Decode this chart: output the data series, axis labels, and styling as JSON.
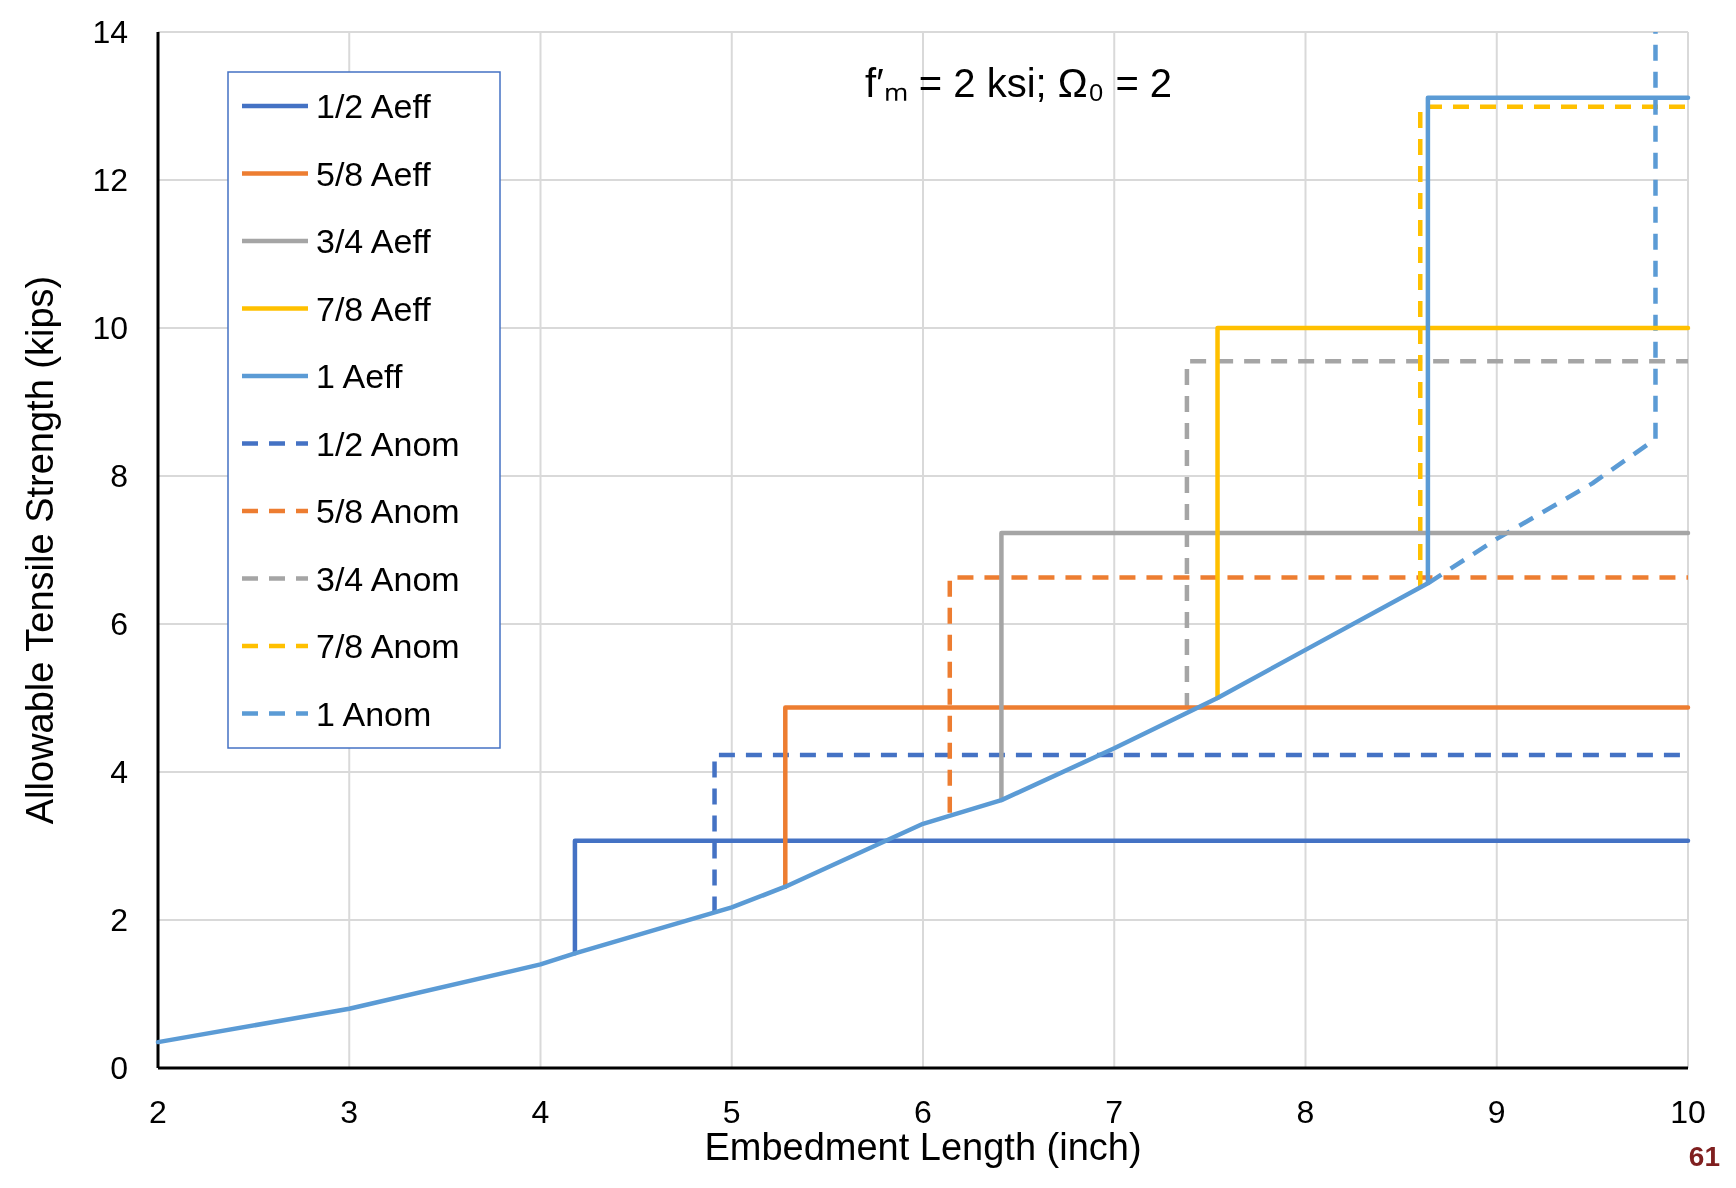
{
  "chart_data": {
    "type": "line",
    "xlabel": "Embedment Length (inch)",
    "ylabel": "Allowable Tensile Strength (kips)",
    "xlim": [
      2,
      10
    ],
    "ylim": [
      0,
      14
    ],
    "xticks": [
      2,
      3,
      4,
      5,
      6,
      7,
      8,
      9,
      10
    ],
    "yticks": [
      0,
      2,
      4,
      6,
      8,
      10,
      12,
      14
    ],
    "grid": true,
    "legend": "top left",
    "annotations": [
      "f′ₘ = 2 ksi; Ω₀ = 2",
      "61"
    ],
    "series": [
      {
        "name": "1/2 Anom",
        "color": "#4472c4",
        "line_style": "dashed",
        "x": [
          4.91,
          4.91,
          10
        ],
        "values": [
          2.1,
          4.23,
          4.23
        ]
      },
      {
        "name": "5/8 Anom",
        "color": "#ed7d31",
        "line_style": "dashed",
        "x": [
          6.14,
          6.14,
          10
        ],
        "values": [
          3.45,
          6.63,
          6.63
        ]
      },
      {
        "name": "3/4 Anom",
        "color": "#a5a5a5",
        "line_style": "dashed",
        "x": [
          7.38,
          7.38,
          10
        ],
        "values": [
          4.85,
          9.55,
          9.55
        ]
      },
      {
        "name": "7/8 Anom",
        "color": "#ffc000",
        "line_style": "dashed",
        "x": [
          8.6,
          8.6,
          10
        ],
        "values": [
          6.5,
          12.99,
          12.99
        ]
      },
      {
        "name": "1 Anom",
        "color": "#5b9bd5",
        "line_style": "dashed",
        "x": [
          8.64,
          9,
          9.5,
          9.83,
          9.83
        ],
        "values": [
          6.55,
          7.15,
          7.9,
          8.5,
          14
        ]
      },
      {
        "name": "1/2 Aeff",
        "color": "#4472c4",
        "line_style": "solid",
        "x": [
          4.18,
          4.18,
          10
        ],
        "values": [
          1.55,
          3.07,
          3.07
        ]
      },
      {
        "name": "5/8 Aeff",
        "color": "#ed7d31",
        "line_style": "solid",
        "x": [
          5.28,
          5.28,
          10
        ],
        "values": [
          2.45,
          4.87,
          4.87
        ]
      },
      {
        "name": "3/4 Aeff",
        "color": "#a5a5a5",
        "line_style": "solid",
        "x": [
          6.41,
          6.41,
          10
        ],
        "values": [
          3.62,
          7.23,
          7.23
        ]
      },
      {
        "name": "7/8 Aeff",
        "color": "#ffc000",
        "line_style": "solid",
        "x": [
          7.54,
          7.54,
          10
        ],
        "values": [
          5.0,
          10,
          10
        ]
      },
      {
        "name": "1 Aeff",
        "color": "#5b9bd5",
        "line_style": "solid",
        "x": [
          2,
          3,
          4,
          4.18,
          5,
          5.28,
          6,
          6.41,
          7,
          7.54,
          8,
          8.64,
          8.64,
          10
        ],
        "values": [
          0.35,
          0.8,
          1.4,
          1.55,
          2.17,
          2.45,
          3.3,
          3.62,
          4.32,
          5.0,
          5.65,
          6.55,
          13.11,
          13.11
        ]
      }
    ]
  }
}
